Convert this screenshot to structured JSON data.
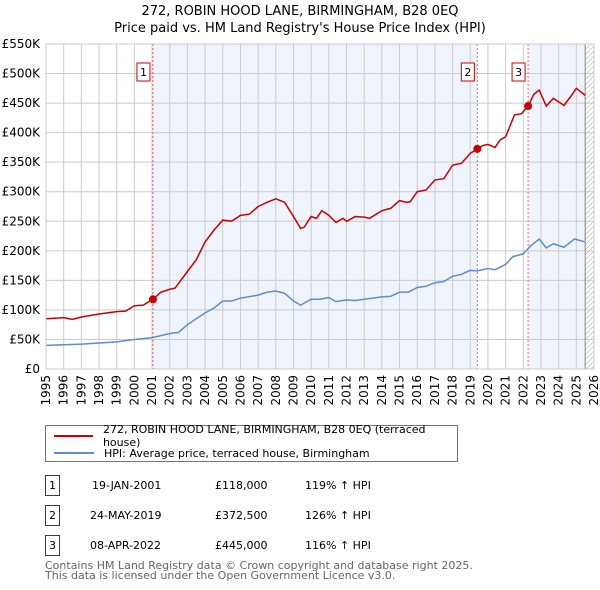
{
  "title_line1": "272, ROBIN HOOD LANE, BIRMINGHAM, B28 0EQ",
  "title_line2": "Price paid vs. HM Land Registry's House Price Index (HPI)",
  "colors": {
    "property": "#cc0000",
    "hpi": "#5b8fd4",
    "shade": "#eef3fc"
  },
  "chart_data": {
    "type": "line",
    "xlim": [
      1995,
      2026
    ],
    "ylim": [
      0,
      550000
    ],
    "yticks": [
      0,
      50000,
      100000,
      150000,
      200000,
      250000,
      300000,
      350000,
      400000,
      450000,
      500000,
      550000
    ],
    "ytick_labels": [
      "£0",
      "£50K",
      "£100K",
      "£150K",
      "£200K",
      "£250K",
      "£300K",
      "£350K",
      "£400K",
      "£450K",
      "£500K",
      "£550K"
    ],
    "xticks": [
      1995,
      1996,
      1997,
      1998,
      1999,
      2000,
      2001,
      2002,
      2003,
      2004,
      2005,
      2006,
      2007,
      2008,
      2009,
      2010,
      2011,
      2012,
      2013,
      2014,
      2015,
      2016,
      2017,
      2018,
      2019,
      2020,
      2021,
      2022,
      2023,
      2024,
      2025,
      2026
    ],
    "grid": true,
    "series": [
      {
        "name": "272, ROBIN HOOD LANE, BIRMINGHAM, B28 0EQ (terraced house)",
        "color": "#cc0000",
        "points": [
          [
            1995,
            85
          ],
          [
            1996,
            87
          ],
          [
            1996.5,
            84
          ],
          [
            1997,
            88
          ],
          [
            1998,
            93
          ],
          [
            1999,
            97
          ],
          [
            1999.5,
            98
          ],
          [
            2000,
            107
          ],
          [
            2000.5,
            108
          ],
          [
            2001.05,
            118
          ],
          [
            2001.5,
            130
          ],
          [
            2002,
            135
          ],
          [
            2002.3,
            137
          ],
          [
            2003,
            165
          ],
          [
            2003.5,
            185
          ],
          [
            2004,
            215
          ],
          [
            2004.5,
            235
          ],
          [
            2005,
            252
          ],
          [
            2005.5,
            250
          ],
          [
            2006,
            260
          ],
          [
            2006.5,
            262
          ],
          [
            2007,
            275
          ],
          [
            2007.5,
            282
          ],
          [
            2008,
            288
          ],
          [
            2008.5,
            282
          ],
          [
            2009,
            258
          ],
          [
            2009.4,
            238
          ],
          [
            2009.6,
            240
          ],
          [
            2010,
            258
          ],
          [
            2010.3,
            255
          ],
          [
            2010.6,
            268
          ],
          [
            2011,
            260
          ],
          [
            2011.4,
            248
          ],
          [
            2011.8,
            255
          ],
          [
            2012,
            250
          ],
          [
            2012.5,
            258
          ],
          [
            2013,
            257
          ],
          [
            2013.3,
            255
          ],
          [
            2014,
            268
          ],
          [
            2014.5,
            272
          ],
          [
            2015,
            285
          ],
          [
            2015.4,
            282
          ],
          [
            2015.6,
            283
          ],
          [
            2016,
            300
          ],
          [
            2016.5,
            303
          ],
          [
            2017,
            320
          ],
          [
            2017.5,
            322
          ],
          [
            2018,
            345
          ],
          [
            2018.5,
            348
          ],
          [
            2019,
            365
          ],
          [
            2019.4,
            372.5
          ],
          [
            2019.7,
            378
          ],
          [
            2020,
            380
          ],
          [
            2020.4,
            375
          ],
          [
            2020.7,
            388
          ],
          [
            2021,
            393
          ],
          [
            2021.5,
            430
          ],
          [
            2021.9,
            432
          ],
          [
            2022.27,
            445
          ],
          [
            2022.6,
            465
          ],
          [
            2022.9,
            472
          ],
          [
            2023.3,
            445
          ],
          [
            2023.7,
            458
          ],
          [
            2024,
            452
          ],
          [
            2024.3,
            446
          ],
          [
            2024.7,
            462
          ],
          [
            2025,
            475
          ],
          [
            2025.3,
            468
          ],
          [
            2025.5,
            463
          ]
        ]
      },
      {
        "name": "HPI: Average price, terraced house, Birmingham",
        "color": "#5b8fd4",
        "points": [
          [
            1995,
            40
          ],
          [
            1997,
            42
          ],
          [
            1998,
            44
          ],
          [
            1999,
            46
          ],
          [
            2000,
            50
          ],
          [
            2001,
            53
          ],
          [
            2002,
            60
          ],
          [
            2002.5,
            62
          ],
          [
            2003,
            75
          ],
          [
            2003.5,
            85
          ],
          [
            2004,
            95
          ],
          [
            2004.5,
            103
          ],
          [
            2005,
            115
          ],
          [
            2005.5,
            115
          ],
          [
            2006,
            120
          ],
          [
            2007,
            125
          ],
          [
            2007.5,
            130
          ],
          [
            2008,
            132
          ],
          [
            2008.5,
            128
          ],
          [
            2009,
            115
          ],
          [
            2009.4,
            108
          ],
          [
            2010,
            118
          ],
          [
            2010.5,
            118
          ],
          [
            2011,
            121
          ],
          [
            2011.4,
            114
          ],
          [
            2012,
            117
          ],
          [
            2012.5,
            116
          ],
          [
            2013,
            118
          ],
          [
            2014,
            122
          ],
          [
            2014.5,
            123
          ],
          [
            2015,
            130
          ],
          [
            2015.5,
            130
          ],
          [
            2016,
            138
          ],
          [
            2016.5,
            140
          ],
          [
            2017,
            146
          ],
          [
            2017.5,
            148
          ],
          [
            2018,
            157
          ],
          [
            2018.5,
            160
          ],
          [
            2019,
            167
          ],
          [
            2019.4,
            166
          ],
          [
            2020,
            170
          ],
          [
            2020.4,
            168
          ],
          [
            2021,
            177
          ],
          [
            2021.4,
            190
          ],
          [
            2022,
            195
          ],
          [
            2022.4,
            208
          ],
          [
            2022.9,
            220
          ],
          [
            2023.3,
            205
          ],
          [
            2023.7,
            212
          ],
          [
            2024.3,
            206
          ],
          [
            2024.9,
            220
          ],
          [
            2025.5,
            215
          ]
        ]
      }
    ],
    "value_unit": "thousands GBP",
    "sales": [
      {
        "label": "1",
        "x": 2001.05,
        "y": 118
      },
      {
        "label": "2",
        "x": 2019.4,
        "y": 372.5
      },
      {
        "label": "3",
        "x": 2022.27,
        "y": 445
      }
    ],
    "shaded_ranges": [
      [
        2001.05,
        2019.4
      ],
      [
        2022.27,
        2025.5
      ]
    ],
    "hatched_from": 2025.5
  },
  "legend": [
    {
      "label": "272, ROBIN HOOD LANE, BIRMINGHAM, B28 0EQ (terraced house)"
    },
    {
      "label": "HPI: Average price, terraced house, Birmingham"
    }
  ],
  "transactions": [
    {
      "num": "1",
      "date": "19-JAN-2001",
      "price": "£118,000",
      "hpi": "119% ↑ HPI"
    },
    {
      "num": "2",
      "date": "24-MAY-2019",
      "price": "£372,500",
      "hpi": "126% ↑ HPI"
    },
    {
      "num": "3",
      "date": "08-APR-2022",
      "price": "£445,000",
      "hpi": "116% ↑ HPI"
    }
  ],
  "footer": {
    "line1": "Contains HM Land Registry data © Crown copyright and database right 2025.",
    "line2": "This data is licensed under the Open Government Licence v3.0."
  }
}
